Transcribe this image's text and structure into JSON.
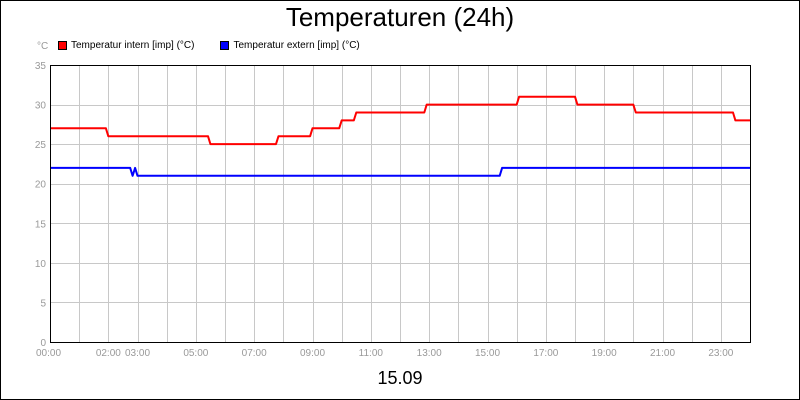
{
  "chart_data": {
    "type": "line",
    "title": "Temperaturen (24h)",
    "xlabel": "15.09",
    "ylabel": "°C",
    "ylim": [
      0,
      35
    ],
    "yticks": [
      0,
      5,
      10,
      15,
      20,
      25,
      30,
      35
    ],
    "xlim": [
      "00:00",
      "24:00"
    ],
    "xticks": [
      "00:00",
      "02:00",
      "03:00",
      "05:00",
      "07:00",
      "09:00",
      "11:00",
      "13:00",
      "15:00",
      "17:00",
      "19:00",
      "21:00",
      "23:00"
    ],
    "grid": true,
    "legend_position": "top-left",
    "series": [
      {
        "name": "Temperatur intern [imp] (°C)",
        "color": "#ff0000",
        "points": [
          [
            "00:00",
            27
          ],
          [
            "01:55",
            27
          ],
          [
            "02:00",
            26
          ],
          [
            "05:25",
            26
          ],
          [
            "05:30",
            25
          ],
          [
            "07:45",
            25
          ],
          [
            "07:50",
            26
          ],
          [
            "08:55",
            26
          ],
          [
            "09:00",
            27
          ],
          [
            "09:55",
            27
          ],
          [
            "10:00",
            28
          ],
          [
            "10:25",
            28
          ],
          [
            "10:30",
            29
          ],
          [
            "12:50",
            29
          ],
          [
            "12:55",
            30
          ],
          [
            "16:00",
            30
          ],
          [
            "16:05",
            31
          ],
          [
            "18:00",
            31
          ],
          [
            "18:05",
            30
          ],
          [
            "20:00",
            30
          ],
          [
            "20:05",
            29
          ],
          [
            "23:25",
            29
          ],
          [
            "23:30",
            28
          ],
          [
            "24:00",
            28
          ]
        ]
      },
      {
        "name": "Temperatur extern [imp] (°C)",
        "color": "#0000ff",
        "points": [
          [
            "00:00",
            22
          ],
          [
            "02:45",
            22
          ],
          [
            "02:50",
            21
          ],
          [
            "02:55",
            22
          ],
          [
            "03:00",
            21
          ],
          [
            "15:25",
            21
          ],
          [
            "15:30",
            22
          ],
          [
            "24:00",
            22
          ]
        ]
      }
    ]
  }
}
